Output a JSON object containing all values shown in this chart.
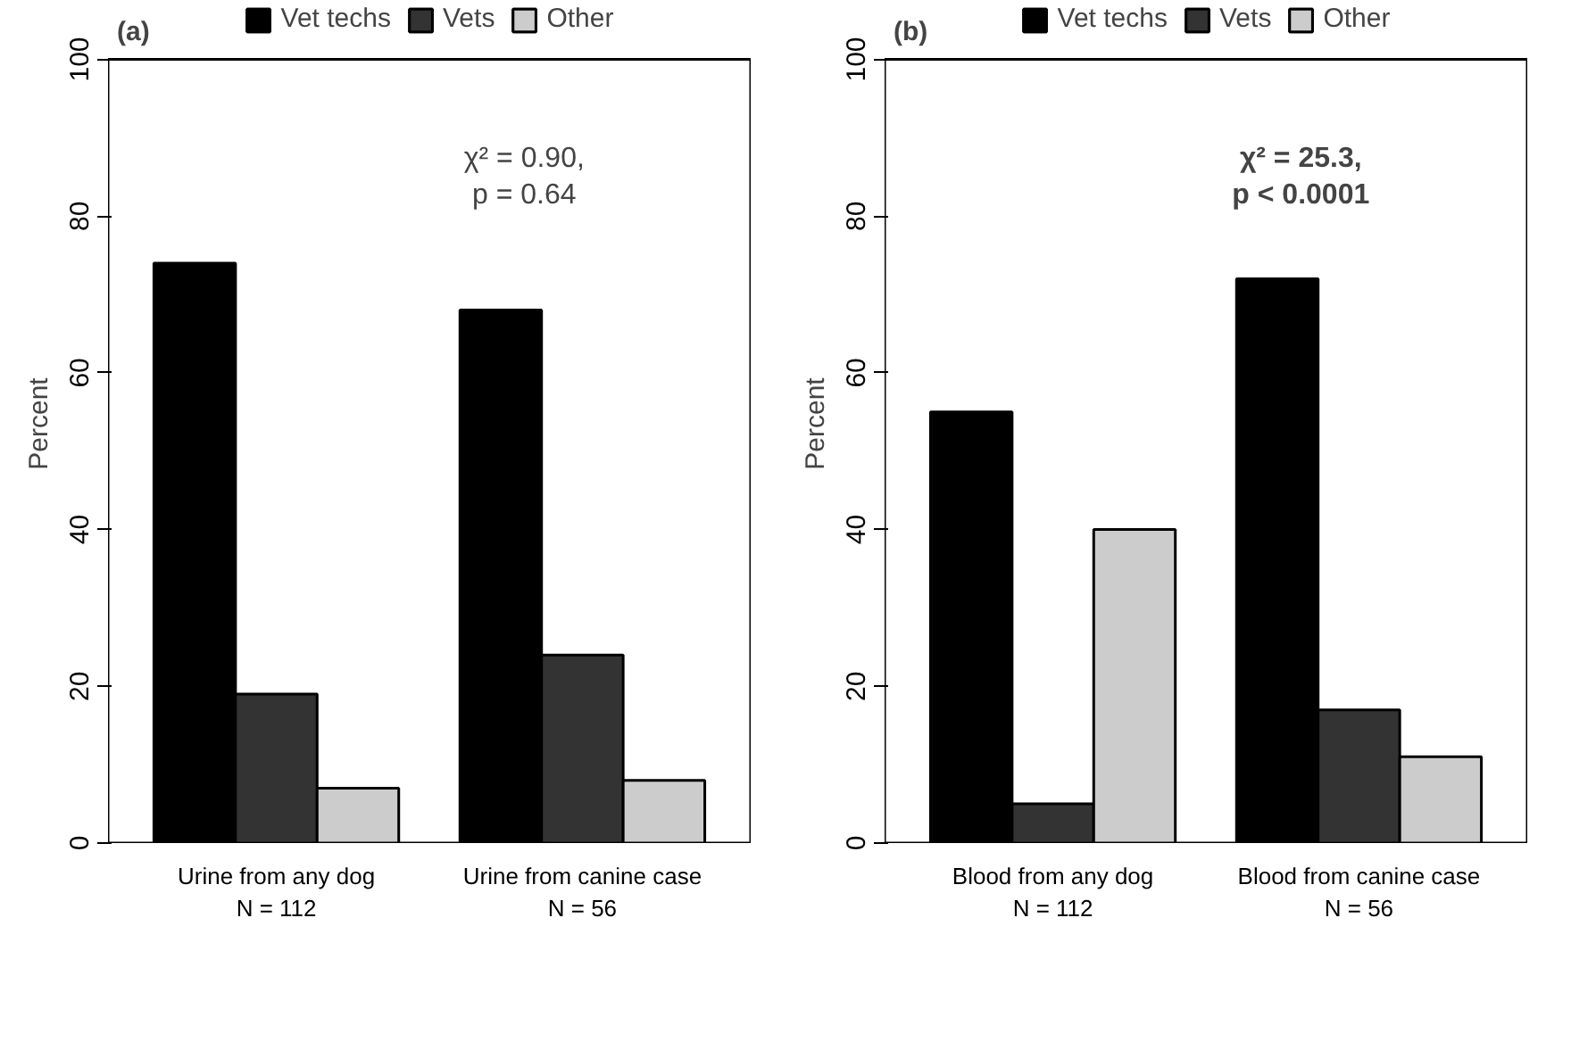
{
  "chart_data": [
    {
      "type": "bar",
      "title": "(a)",
      "ylabel": "Percent",
      "categories": [
        "Urine from any dog\nN = 112",
        "Urine from canine case\nN = 56"
      ],
      "series": [
        {
          "name": "Vet techs",
          "color": "#000000",
          "values": [
            74,
            68
          ]
        },
        {
          "name": "Vets",
          "color": "#333333",
          "values": [
            19,
            24
          ]
        },
        {
          "name": "Other",
          "color": "#cccccc",
          "values": [
            7,
            8
          ]
        }
      ],
      "ylim": [
        0,
        100
      ],
      "yticks": [
        0,
        20,
        40,
        60,
        80,
        100
      ],
      "legend": "top",
      "grid": false,
      "annotations": [
        "χ² = 0.90,\np = 0.64"
      ]
    },
    {
      "type": "bar",
      "title": "(b)",
      "ylabel": "Percent",
      "categories": [
        "Blood from any dog\nN = 112",
        "Blood from canine case\nN = 56"
      ],
      "series": [
        {
          "name": "Vet techs",
          "color": "#000000",
          "values": [
            55,
            72
          ]
        },
        {
          "name": "Vets",
          "color": "#333333",
          "values": [
            5,
            17
          ]
        },
        {
          "name": "Other",
          "color": "#cccccc",
          "values": [
            40,
            11
          ]
        }
      ],
      "ylim": [
        0,
        100
      ],
      "yticks": [
        0,
        20,
        40,
        60,
        80,
        100
      ],
      "legend": "top",
      "grid": false,
      "annotations": [
        "χ² = 25.3,\np < 0.0001"
      ]
    }
  ]
}
